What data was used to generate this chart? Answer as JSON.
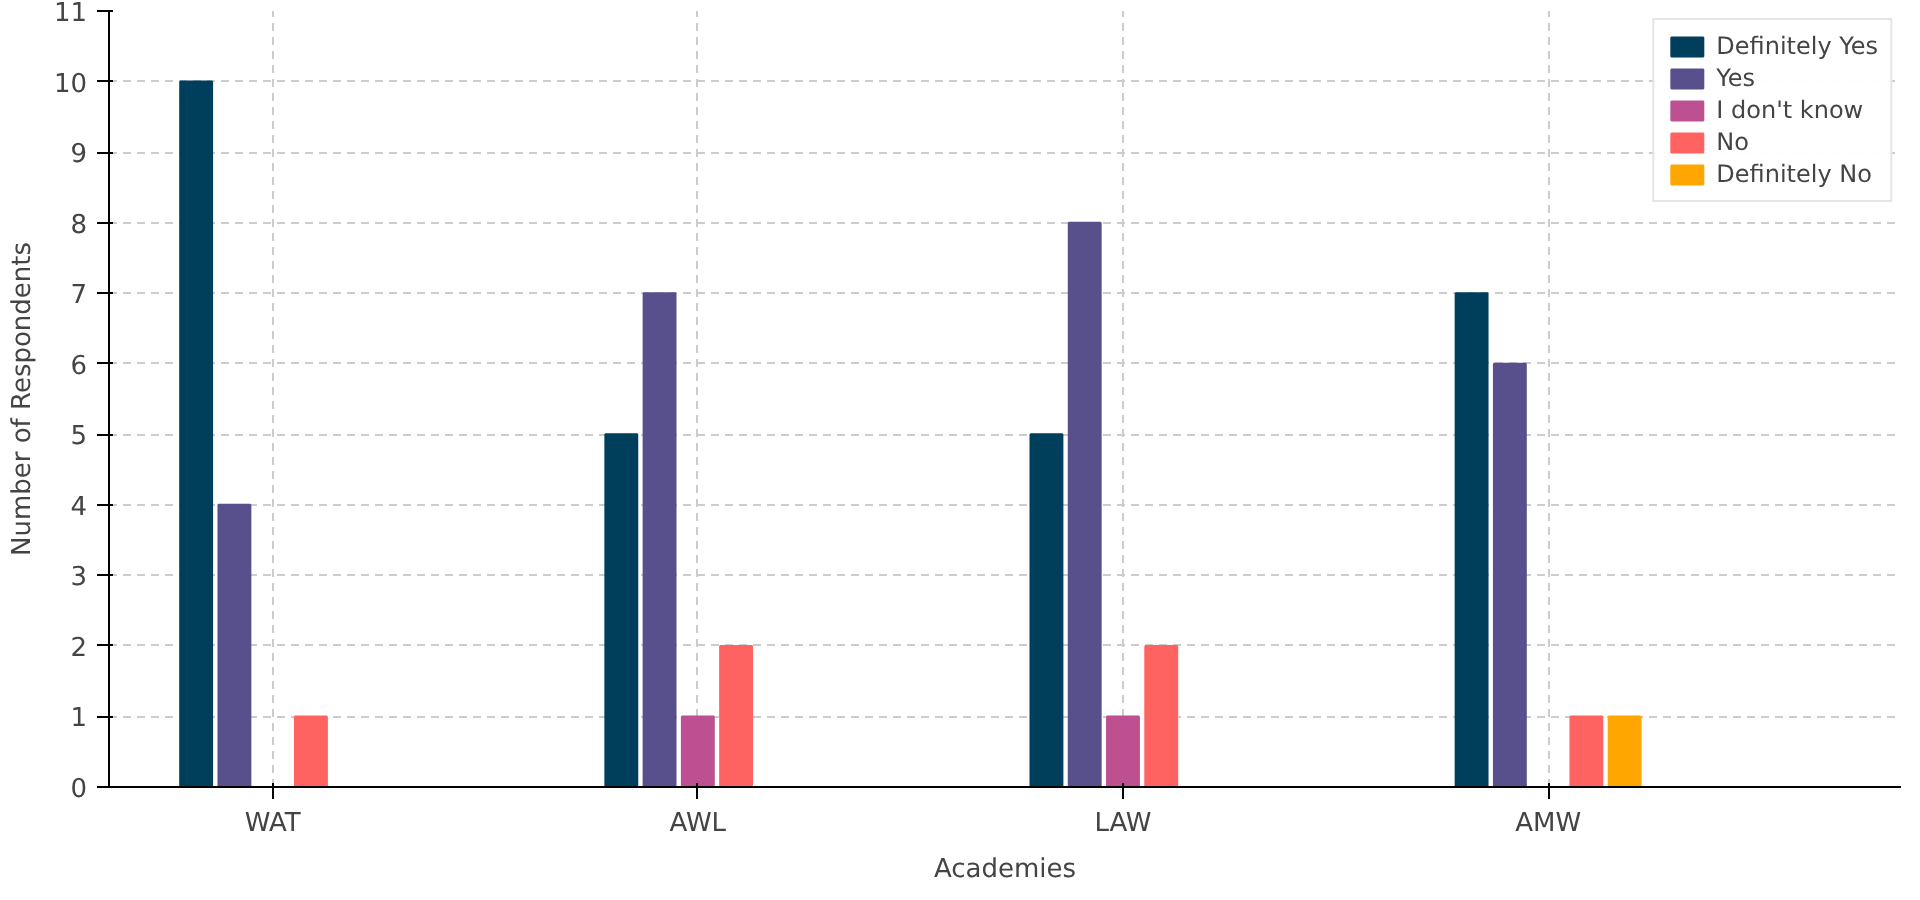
{
  "chart_data": {
    "type": "bar",
    "xlabel": "Academies",
    "ylabel": "Number of Respondents",
    "categories": [
      "WAT",
      "AWL",
      "LAW",
      "AMW"
    ],
    "series": [
      {
        "name": "Definitely Yes",
        "color": "#003f5c",
        "values": [
          10,
          5,
          5,
          7
        ]
      },
      {
        "name": "Yes",
        "color": "#58508d",
        "values": [
          4,
          7,
          8,
          6
        ]
      },
      {
        "name": "I don't know",
        "color": "#bc5090",
        "values": [
          0,
          1,
          1,
          0
        ]
      },
      {
        "name": "No",
        "color": "#ff6361",
        "values": [
          1,
          2,
          2,
          1
        ]
      },
      {
        "name": "Definitely No",
        "color": "#ffa600",
        "values": [
          0,
          0,
          0,
          1
        ]
      }
    ],
    "ylim": [
      0,
      11
    ],
    "yticks": [
      0,
      1,
      2,
      3,
      4,
      5,
      6,
      7,
      8,
      9,
      10,
      11
    ],
    "grid": true,
    "legend": "top right"
  }
}
